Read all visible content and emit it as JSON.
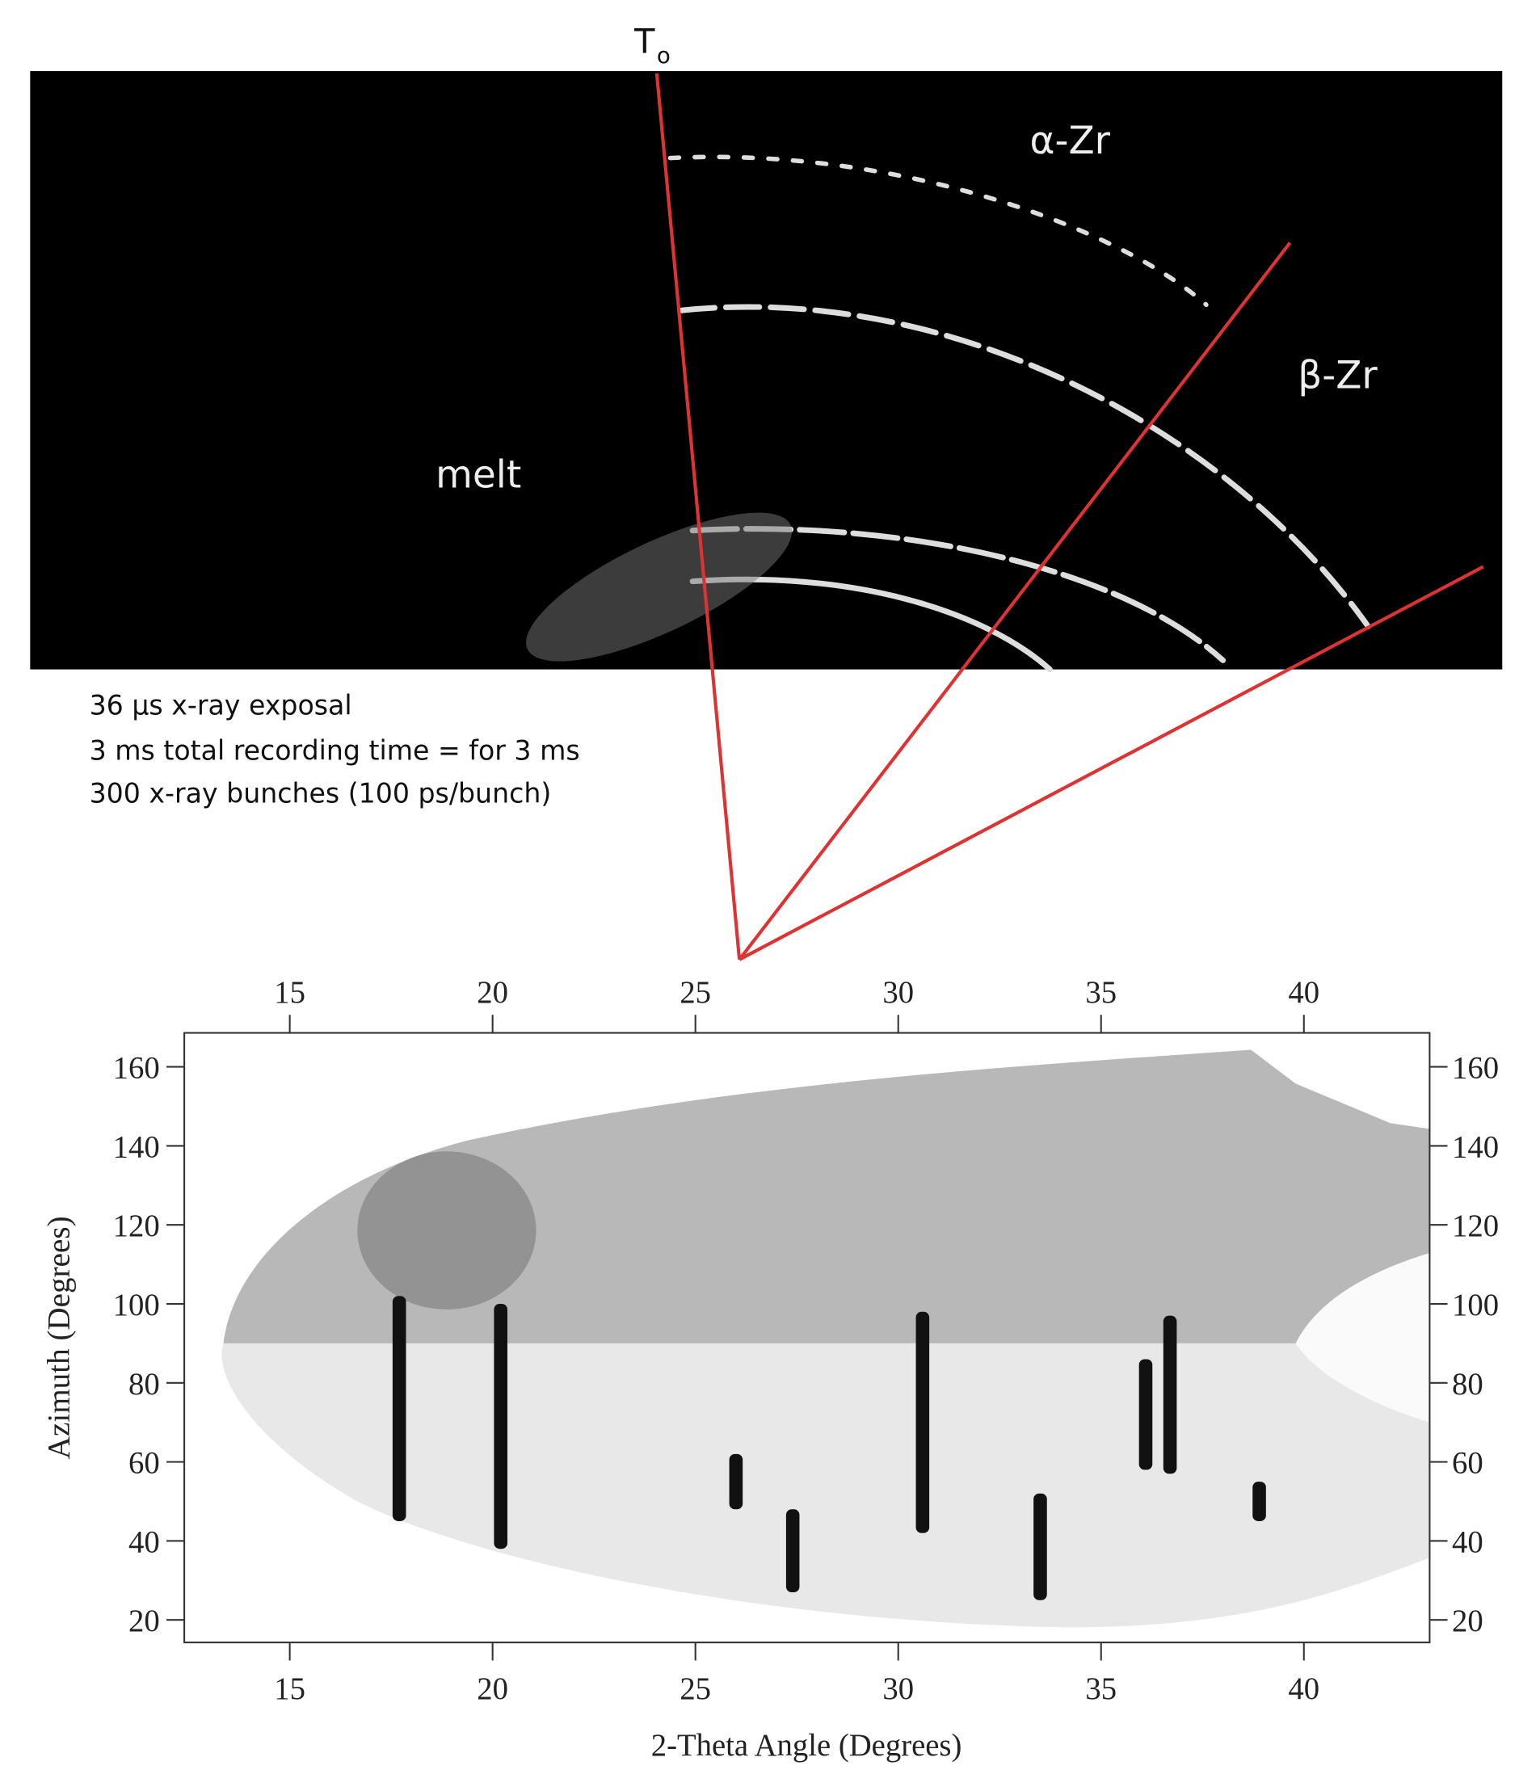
{
  "chart_data": {
    "type": "heatmap-image",
    "t_label": "T",
    "t_subscript": "o",
    "labels": {
      "alpha": "α-Zr",
      "beta": "β-Zr",
      "melt": "melt"
    },
    "caption": [
      "36 μs x-ray exposal",
      "3 ms total recording time = for 3 ms",
      "300 x-ray bunches (100 ps/bunch)"
    ],
    "xlabel": "2-Theta Angle (Degrees)",
    "ylabel": "Azimuth (Degrees)",
    "xlim": [
      12.4,
      43.1
    ],
    "ylim": [
      14.3,
      168.6
    ],
    "xticks": [
      15,
      20,
      25,
      30,
      35,
      40
    ],
    "yticks": [
      20,
      40,
      60,
      80,
      100,
      120,
      140,
      160
    ],
    "streaks": [
      {
        "x": 17.7,
        "y0": 45,
        "y1": 102
      },
      {
        "x": 20.2,
        "y0": 38,
        "y1": 100
      },
      {
        "x": 30.6,
        "y0": 42,
        "y1": 98
      },
      {
        "x": 27.4,
        "y0": 27,
        "y1": 48
      },
      {
        "x": 33.5,
        "y0": 25,
        "y1": 52
      },
      {
        "x": 36.7,
        "y0": 57,
        "y1": 97
      },
      {
        "x": 36.1,
        "y0": 58,
        "y1": 86
      },
      {
        "x": 26.0,
        "y0": 48,
        "y1": 62
      },
      {
        "x": 38.9,
        "y0": 45,
        "y1": 55
      }
    ],
    "color": "#111111"
  }
}
